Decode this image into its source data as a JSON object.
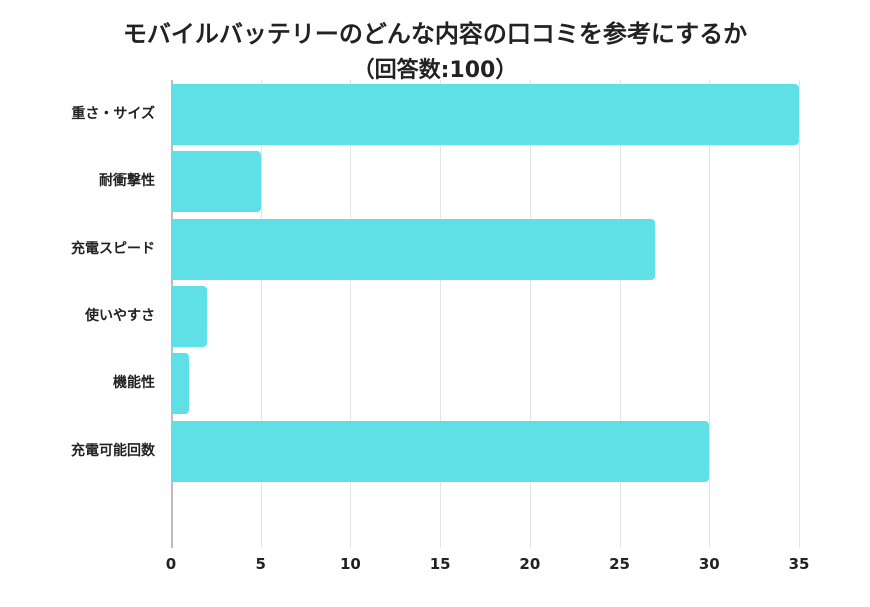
{
  "chart_data": {
    "type": "bar",
    "orientation": "horizontal",
    "title": "モバイルバッテリーのどんな内容の口コミを参考にするか",
    "subtitle": "（回答数:100）",
    "categories": [
      "重さ・サイズ",
      "耐衝撃性",
      "充電スピード",
      "使いやすさ",
      "機能性",
      "充電可能回数"
    ],
    "values": [
      35,
      5,
      27,
      2,
      1,
      30
    ],
    "xlabel": "",
    "ylabel": "",
    "xlim": [
      0,
      35
    ],
    "xticks": [
      "0",
      "5",
      "10",
      "15",
      "20",
      "25",
      "30",
      "35"
    ],
    "grid": true,
    "legend": null,
    "bar_color": "#5ee0e6"
  }
}
